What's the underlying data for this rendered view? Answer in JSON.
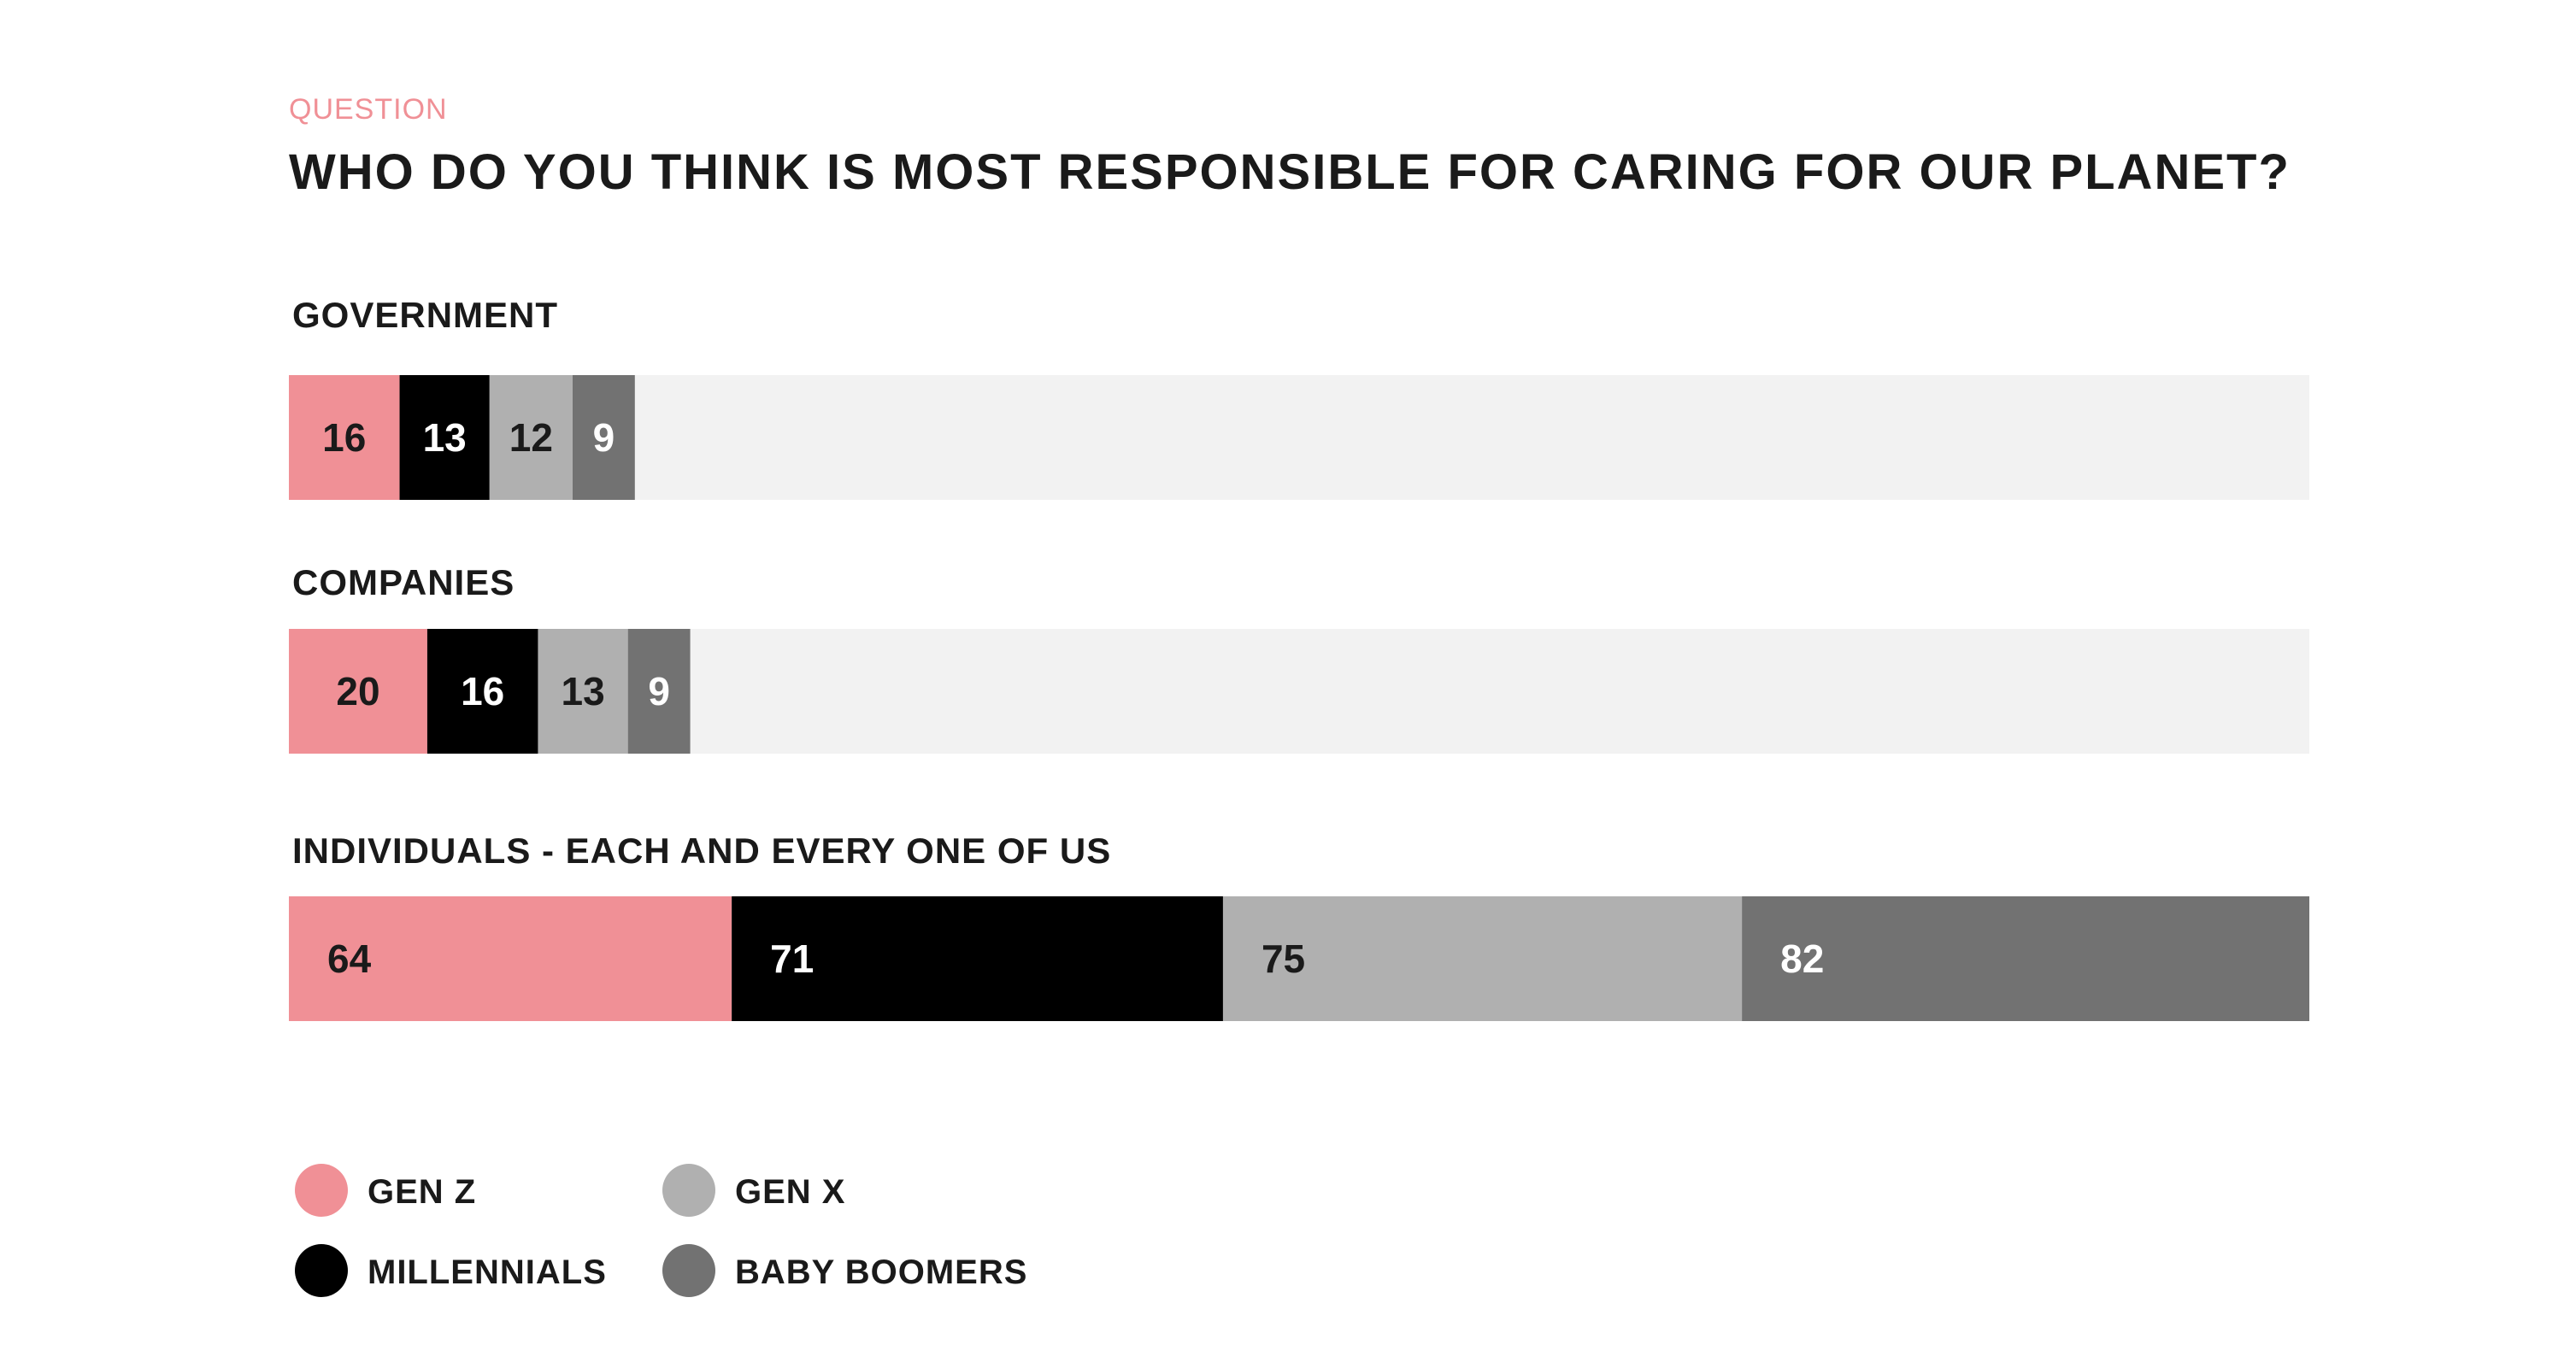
{
  "colors": {
    "gen_z": "#f09096",
    "millennials": "#000000",
    "gen_x": "#b0b0b0",
    "baby_boomers": "#727272",
    "track": "#f2f2f2",
    "eyebrow": "#f09096",
    "text": "#1a1a1a"
  },
  "chart_data": {
    "type": "bar",
    "orientation": "horizontal",
    "stacked": true,
    "eyebrow": "QUESTION",
    "title": "WHO DO YOU THINK IS MOST RESPONSIBLE FOR CARING FOR OUR PLANET?",
    "categories": [
      "GOVERNMENT",
      "COMPANIES",
      "INDIVIDUALS - EACH AND EVERY ONE OF US"
    ],
    "series": [
      {
        "name": "GEN Z",
        "values": [
          16,
          20,
          64
        ]
      },
      {
        "name": "MILLENNIALS",
        "values": [
          13,
          16,
          71
        ]
      },
      {
        "name": "GEN X",
        "values": [
          12,
          13,
          75
        ]
      },
      {
        "name": "BABY BOOMERS",
        "values": [
          9,
          9,
          82
        ]
      }
    ],
    "xlim": [
      0,
      292
    ],
    "grid": false,
    "legend": "bottom-left"
  }
}
